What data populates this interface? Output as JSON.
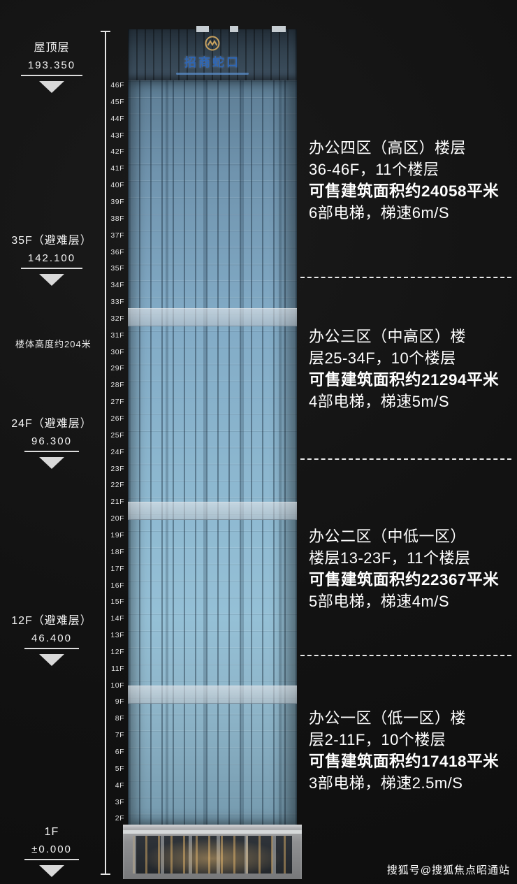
{
  "height_note": "楼体高度约204米",
  "watermark": "搜狐号@搜狐焦点昭通站",
  "building": {
    "logo_text": "招商蛇口",
    "floors": [
      "46F",
      "45F",
      "44F",
      "43F",
      "42F",
      "41F",
      "40F",
      "39F",
      "38F",
      "37F",
      "36F",
      "35F",
      "34F",
      "33F",
      "32F",
      "31F",
      "30F",
      "29F",
      "28F",
      "27F",
      "26F",
      "25F",
      "24F",
      "23F",
      "22F",
      "21F",
      "20F",
      "19F",
      "18F",
      "17F",
      "16F",
      "15F",
      "14F",
      "13F",
      "12F",
      "11F",
      "10F",
      "9F",
      "8F",
      "7F",
      "6F",
      "5F",
      "4F",
      "3F",
      "2F"
    ]
  },
  "elevation_markers": [
    {
      "label": "屋顶层",
      "value": "193.350"
    },
    {
      "label": "35F（避难层）",
      "value": "142.100"
    },
    {
      "label": "24F（避难层）",
      "value": "96.300"
    },
    {
      "label": "12F（避难层）",
      "value": "46.400"
    },
    {
      "label": "1F",
      "value": "±0.000"
    }
  ],
  "zones": [
    {
      "line1": "办公四区（高区）楼层",
      "line2": "36-46F，11个楼层",
      "area_line": "可售建筑面积约24058平米",
      "elevator_line": "6部电梯，梯速6m/S"
    },
    {
      "line1": "办公三区（中高区）楼",
      "line2": "层25-34F，10个楼层",
      "area_line": "可售建筑面积约21294平米",
      "elevator_line": "4部电梯，梯速5m/S"
    },
    {
      "line1": "办公二区（中低一区）",
      "line2": "楼层13-23F，11个楼层",
      "area_line": "可售建筑面积约22367平米",
      "elevator_line": "5部电梯，梯速4m/S"
    },
    {
      "line1": "办公一区（低一区）楼",
      "line2": "层2-11F，10个楼层",
      "area_line": "可售建筑面积约17418平米",
      "elevator_line": "3部电梯，梯速2.5m/S"
    }
  ]
}
